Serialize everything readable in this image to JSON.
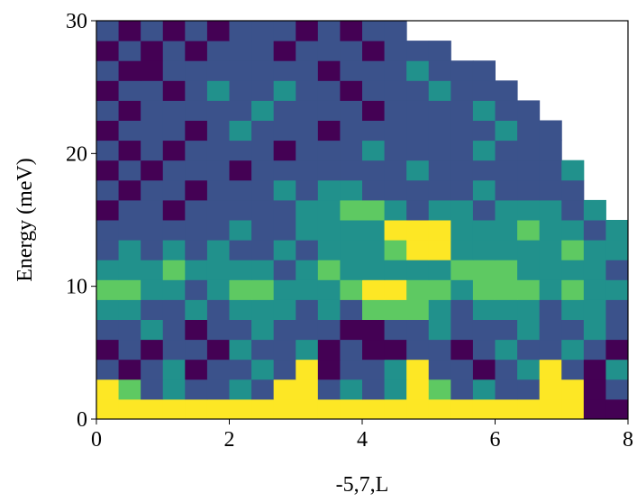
{
  "chart_data": {
    "type": "heatmap",
    "xlabel": "-5,7,L",
    "ylabel": "Energy (meV)",
    "xlim": [
      0,
      8
    ],
    "ylim": [
      0,
      30
    ],
    "xticks": [
      0,
      2,
      4,
      6,
      8
    ],
    "yticks": [
      0,
      10,
      20,
      30
    ],
    "zlim": [
      0,
      4
    ],
    "colors": [
      "#440154",
      "#3b528b",
      "#21918c",
      "#5ec962",
      "#fde725"
    ],
    "z": [
      [
        4,
        4,
        4,
        4,
        4,
        4,
        4,
        4,
        4,
        4,
        4,
        4,
        4,
        4,
        4,
        4,
        4,
        4,
        4,
        4,
        4,
        4,
        0,
        0
      ],
      [
        4,
        3,
        1,
        2,
        1,
        1,
        2,
        1,
        4,
        4,
        1,
        2,
        1,
        2,
        4,
        3,
        1,
        2,
        1,
        1,
        4,
        4,
        0,
        1
      ],
      [
        1,
        0,
        1,
        2,
        0,
        1,
        1,
        2,
        1,
        4,
        0,
        1,
        1,
        2,
        4,
        1,
        1,
        0,
        1,
        2,
        4,
        1,
        0,
        2
      ],
      [
        0,
        1,
        0,
        1,
        1,
        0,
        2,
        1,
        1,
        2,
        0,
        1,
        0,
        0,
        1,
        1,
        0,
        1,
        2,
        1,
        1,
        2,
        1,
        0
      ],
      [
        1,
        1,
        2,
        1,
        0,
        1,
        1,
        2,
        1,
        1,
        1,
        0,
        0,
        1,
        1,
        2,
        1,
        1,
        1,
        2,
        1,
        1,
        2,
        1
      ],
      [
        2,
        2,
        1,
        1,
        2,
        1,
        2,
        2,
        2,
        1,
        2,
        1,
        3,
        3,
        3,
        2,
        1,
        2,
        2,
        2,
        1,
        2,
        2,
        1
      ],
      [
        3,
        3,
        2,
        2,
        1,
        2,
        3,
        3,
        2,
        2,
        2,
        3,
        4,
        4,
        3,
        3,
        2,
        3,
        3,
        3,
        2,
        3,
        2,
        2
      ],
      [
        2,
        2,
        2,
        3,
        2,
        2,
        2,
        2,
        1,
        2,
        3,
        2,
        2,
        2,
        2,
        2,
        3,
        3,
        3,
        2,
        2,
        2,
        2,
        1
      ],
      [
        1,
        2,
        1,
        2,
        1,
        2,
        1,
        1,
        2,
        1,
        2,
        2,
        2,
        3,
        4,
        4,
        2,
        2,
        2,
        2,
        2,
        3,
        2,
        2
      ],
      [
        1,
        1,
        1,
        1,
        1,
        1,
        2,
        1,
        1,
        2,
        2,
        2,
        2,
        4,
        4,
        4,
        2,
        2,
        2,
        3,
        2,
        2,
        1,
        2
      ],
      [
        0,
        1,
        1,
        0,
        1,
        1,
        1,
        1,
        1,
        2,
        2,
        3,
        3,
        2,
        1,
        2,
        2,
        1,
        2,
        2,
        2,
        1,
        2,
        null
      ],
      [
        1,
        0,
        1,
        1,
        0,
        1,
        1,
        1,
        2,
        1,
        2,
        2,
        1,
        1,
        1,
        1,
        1,
        2,
        1,
        1,
        1,
        1,
        null,
        null
      ],
      [
        0,
        1,
        0,
        1,
        1,
        1,
        0,
        1,
        1,
        1,
        1,
        1,
        1,
        1,
        2,
        1,
        1,
        1,
        1,
        1,
        1,
        2,
        null,
        null
      ],
      [
        1,
        0,
        1,
        0,
        1,
        1,
        1,
        1,
        0,
        1,
        1,
        1,
        2,
        1,
        1,
        1,
        1,
        2,
        1,
        1,
        1,
        null,
        null,
        null
      ],
      [
        0,
        1,
        1,
        1,
        0,
        1,
        2,
        1,
        1,
        1,
        0,
        1,
        1,
        1,
        1,
        1,
        1,
        1,
        2,
        1,
        1,
        null,
        null,
        null
      ],
      [
        1,
        0,
        1,
        1,
        1,
        1,
        1,
        2,
        1,
        1,
        1,
        1,
        0,
        1,
        1,
        1,
        1,
        2,
        1,
        1,
        null,
        null,
        null,
        null
      ],
      [
        0,
        1,
        1,
        0,
        1,
        2,
        1,
        1,
        2,
        1,
        1,
        0,
        1,
        1,
        1,
        2,
        1,
        1,
        1,
        null,
        null,
        null,
        null,
        null
      ],
      [
        1,
        0,
        0,
        1,
        1,
        1,
        1,
        1,
        1,
        1,
        0,
        1,
        1,
        1,
        2,
        1,
        1,
        1,
        null,
        null,
        null,
        null,
        null,
        null
      ],
      [
        0,
        1,
        0,
        1,
        0,
        1,
        1,
        1,
        0,
        1,
        1,
        1,
        0,
        1,
        1,
        1,
        null,
        null,
        null,
        null,
        null,
        null,
        null,
        null
      ],
      [
        1,
        0,
        1,
        0,
        1,
        0,
        1,
        1,
        1,
        0,
        1,
        0,
        1,
        1,
        null,
        null,
        null,
        null,
        null,
        null,
        null,
        null,
        null,
        null
      ]
    ]
  }
}
